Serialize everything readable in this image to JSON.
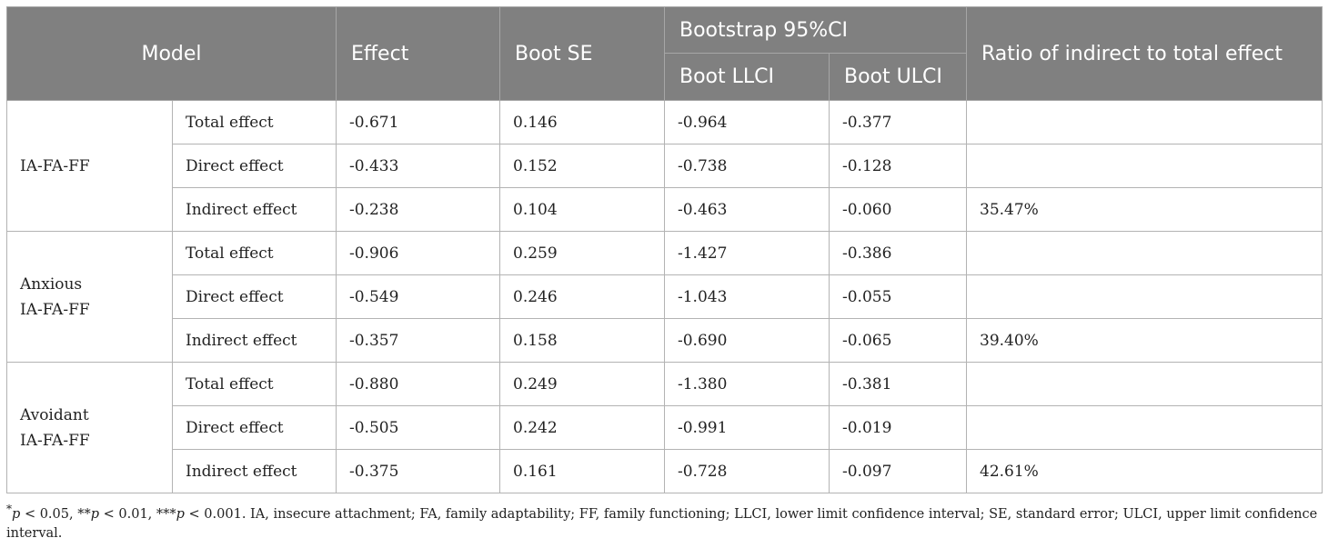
{
  "header": {
    "model": "Model",
    "effect": "Effect",
    "boot_se": "Boot SE",
    "bootstrap_ci": "Bootstrap 95%CI",
    "boot_llci": "Boot LLCI",
    "boot_ulci": "Boot ULCI",
    "ratio": "Ratio of indirect to total effect"
  },
  "groups": [
    {
      "model_line1": "IA-FA-FF",
      "model_line2": "",
      "rows": [
        {
          "type": "Total effect",
          "effect": "-0.671",
          "se": "0.146",
          "llci": "-0.964",
          "ulci": "-0.377",
          "ratio": ""
        },
        {
          "type": "Direct effect",
          "effect": "-0.433",
          "se": "0.152",
          "llci": "-0.738",
          "ulci": "-0.128",
          "ratio": ""
        },
        {
          "type": "Indirect effect",
          "effect": "-0.238",
          "se": "0.104",
          "llci": "-0.463",
          "ulci": "-0.060",
          "ratio": "35.47%"
        }
      ]
    },
    {
      "model_line1": "Anxious",
      "model_line2": "IA-FA-FF",
      "rows": [
        {
          "type": "Total effect",
          "effect": "-0.906",
          "se": "0.259",
          "llci": "-1.427",
          "ulci": "-0.386",
          "ratio": ""
        },
        {
          "type": "Direct effect",
          "effect": "-0.549",
          "se": "0.246",
          "llci": "-1.043",
          "ulci": "-0.055",
          "ratio": ""
        },
        {
          "type": "Indirect effect",
          "effect": "-0.357",
          "se": "0.158",
          "llci": "-0.690",
          "ulci": "-0.065",
          "ratio": "39.40%"
        }
      ]
    },
    {
      "model_line1": "Avoidant",
      "model_line2": "IA-FA-FF",
      "rows": [
        {
          "type": "Total effect",
          "effect": "-0.880",
          "se": "0.249",
          "llci": "-1.380",
          "ulci": "-0.381",
          "ratio": ""
        },
        {
          "type": "Direct effect",
          "effect": "-0.505",
          "se": "0.242",
          "llci": "-0.991",
          "ulci": "-0.019",
          "ratio": ""
        },
        {
          "type": "Indirect effect",
          "effect": "-0.375",
          "se": "0.161",
          "llci": "-0.728",
          "ulci": "-0.097",
          "ratio": "42.61%"
        }
      ]
    }
  ],
  "footnote": {
    "p1": "p",
    "p1_text": " < 0.05, **",
    "p2": "p",
    "p2_text": " < 0.01, ***",
    "p3": "p",
    "p3_text": " < 0.001. IA, insecure attachment; FA, family adaptability; FF, family functioning; LLCI, lower limit confidence interval; SE, standard error; ULCI, upper limit confidence interval.",
    "star": "*"
  }
}
